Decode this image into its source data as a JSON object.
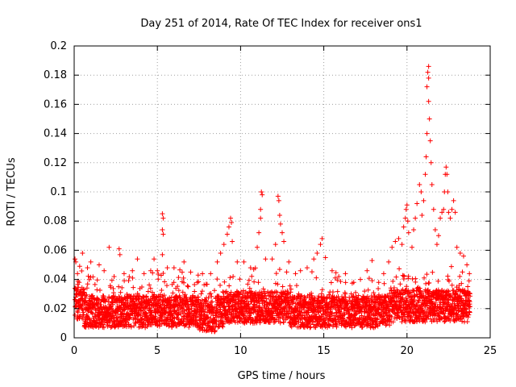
{
  "chart_data": {
    "type": "scatter",
    "title": "Day 251 of 2014, Rate Of TEC Index for receiver ons1",
    "xlabel": "GPS time / hours",
    "ylabel": "ROTI / TECUs",
    "xlim": [
      0,
      25
    ],
    "ylim": [
      0,
      0.2
    ],
    "x_ticks": [
      0,
      5,
      10,
      15,
      20,
      25
    ],
    "x_tick_labels": [
      "0",
      "5",
      "10",
      "15",
      "20",
      "25"
    ],
    "y_ticks": [
      0,
      0.02,
      0.04,
      0.06,
      0.08,
      0.1,
      0.12,
      0.14,
      0.16,
      0.18,
      0.2
    ],
    "y_tick_labels": [
      "0",
      "0.02",
      "0.04",
      "0.06",
      "0.08",
      "0.1",
      "0.12",
      "0.14",
      "0.16",
      "0.18",
      "0.2"
    ],
    "grid": true,
    "marker": "plus",
    "series": [
      {
        "name": "ROTI",
        "color": "#ff0000",
        "points": [
          [
            0.05,
            0.054
          ],
          [
            0.1,
            0.052
          ],
          [
            0.2,
            0.044
          ],
          [
            0.3,
            0.038
          ],
          [
            0.5,
            0.058
          ],
          [
            0.8,
            0.048
          ],
          [
            1.0,
            0.052
          ],
          [
            1.5,
            0.05
          ],
          [
            1.8,
            0.046
          ],
          [
            2.1,
            0.062
          ],
          [
            2.4,
            0.042
          ],
          [
            2.7,
            0.061
          ],
          [
            2.75,
            0.057
          ],
          [
            3.0,
            0.044
          ],
          [
            3.5,
            0.046
          ],
          [
            3.8,
            0.054
          ],
          [
            4.2,
            0.044
          ],
          [
            4.6,
            0.046
          ],
          [
            4.8,
            0.054
          ],
          [
            5.0,
            0.046
          ],
          [
            5.3,
            0.085
          ],
          [
            5.35,
            0.082
          ],
          [
            5.3,
            0.074
          ],
          [
            5.35,
            0.071
          ],
          [
            5.3,
            0.057
          ],
          [
            5.6,
            0.048
          ],
          [
            6.0,
            0.048
          ],
          [
            6.6,
            0.052
          ],
          [
            7.0,
            0.045
          ],
          [
            7.4,
            0.038
          ],
          [
            7.7,
            0.032
          ],
          [
            8.2,
            0.044
          ],
          [
            8.6,
            0.052
          ],
          [
            8.8,
            0.058
          ],
          [
            9.0,
            0.064
          ],
          [
            9.2,
            0.071
          ],
          [
            9.3,
            0.076
          ],
          [
            9.4,
            0.082
          ],
          [
            9.45,
            0.079
          ],
          [
            9.5,
            0.066
          ],
          [
            9.8,
            0.052
          ],
          [
            10.2,
            0.052
          ],
          [
            10.6,
            0.048
          ],
          [
            11.0,
            0.062
          ],
          [
            11.1,
            0.072
          ],
          [
            11.2,
            0.082
          ],
          [
            11.25,
            0.1
          ],
          [
            11.3,
            0.098
          ],
          [
            11.2,
            0.088
          ],
          [
            11.5,
            0.054
          ],
          [
            11.9,
            0.054
          ],
          [
            12.1,
            0.064
          ],
          [
            12.25,
            0.097
          ],
          [
            12.3,
            0.094
          ],
          [
            12.35,
            0.084
          ],
          [
            12.4,
            0.078
          ],
          [
            12.5,
            0.072
          ],
          [
            12.6,
            0.066
          ],
          [
            12.9,
            0.052
          ],
          [
            13.3,
            0.044
          ],
          [
            13.6,
            0.046
          ],
          [
            14.0,
            0.048
          ],
          [
            14.4,
            0.054
          ],
          [
            14.6,
            0.058
          ],
          [
            14.8,
            0.064
          ],
          [
            14.9,
            0.068
          ],
          [
            15.1,
            0.055
          ],
          [
            15.5,
            0.046
          ],
          [
            15.9,
            0.042
          ],
          [
            16.3,
            0.044
          ],
          [
            16.8,
            0.038
          ],
          [
            17.2,
            0.04
          ],
          [
            17.6,
            0.046
          ],
          [
            17.9,
            0.053
          ],
          [
            18.3,
            0.038
          ],
          [
            18.6,
            0.044
          ],
          [
            18.9,
            0.052
          ],
          [
            19.1,
            0.062
          ],
          [
            19.3,
            0.066
          ],
          [
            19.5,
            0.068
          ],
          [
            19.7,
            0.064
          ],
          [
            19.8,
            0.076
          ],
          [
            19.9,
            0.082
          ],
          [
            19.95,
            0.088
          ],
          [
            20.0,
            0.091
          ],
          [
            20.05,
            0.08
          ],
          [
            20.1,
            0.072
          ],
          [
            20.3,
            0.062
          ],
          [
            20.4,
            0.074
          ],
          [
            20.5,
            0.082
          ],
          [
            20.6,
            0.092
          ],
          [
            20.75,
            0.105
          ],
          [
            20.85,
            0.1
          ],
          [
            20.9,
            0.084
          ],
          [
            21.0,
            0.094
          ],
          [
            21.1,
            0.112
          ],
          [
            21.15,
            0.124
          ],
          [
            21.2,
            0.14
          ],
          [
            21.2,
            0.172
          ],
          [
            21.25,
            0.182
          ],
          [
            21.3,
            0.186
          ],
          [
            21.3,
            0.178
          ],
          [
            21.3,
            0.162
          ],
          [
            21.35,
            0.15
          ],
          [
            21.4,
            0.135
          ],
          [
            21.45,
            0.12
          ],
          [
            21.5,
            0.105
          ],
          [
            21.6,
            0.088
          ],
          [
            21.7,
            0.074
          ],
          [
            21.8,
            0.064
          ],
          [
            21.9,
            0.07
          ],
          [
            22.0,
            0.082
          ],
          [
            22.1,
            0.086
          ],
          [
            22.2,
            0.088
          ],
          [
            22.25,
            0.1
          ],
          [
            22.3,
            0.112
          ],
          [
            22.35,
            0.117
          ],
          [
            22.4,
            0.112
          ],
          [
            22.45,
            0.1
          ],
          [
            22.5,
            0.086
          ],
          [
            22.6,
            0.082
          ],
          [
            22.7,
            0.088
          ],
          [
            22.8,
            0.094
          ],
          [
            22.9,
            0.086
          ],
          [
            23.0,
            0.062
          ],
          [
            23.2,
            0.058
          ],
          [
            23.4,
            0.056
          ],
          [
            23.6,
            0.05
          ],
          [
            23.75,
            0.044
          ]
        ]
      }
    ]
  }
}
